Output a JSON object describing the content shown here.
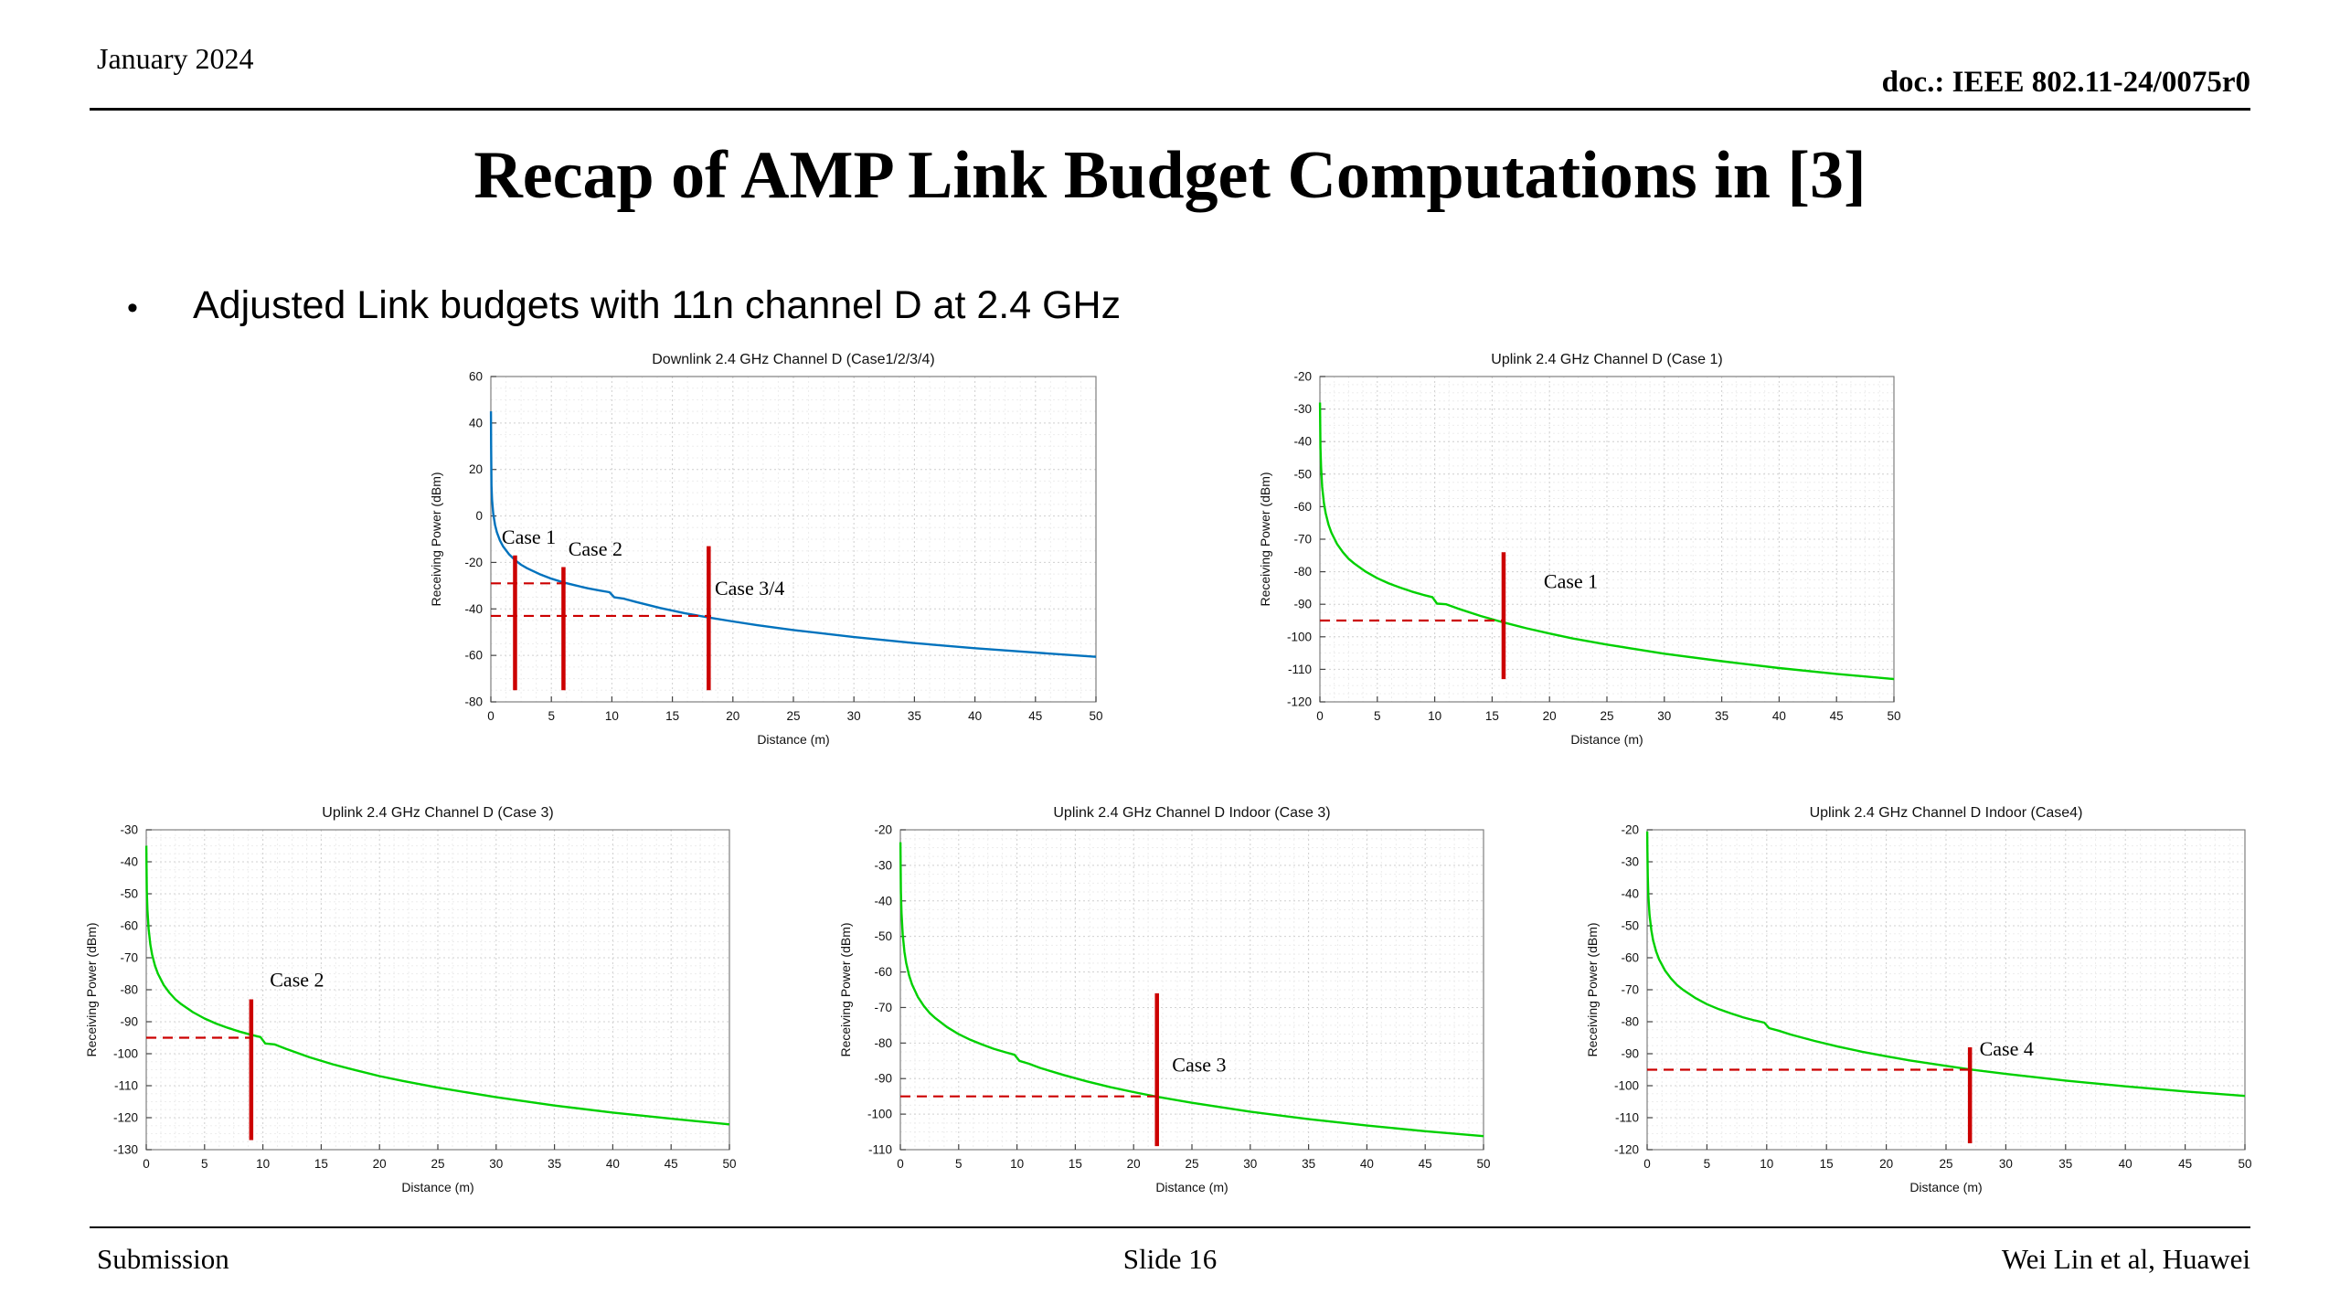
{
  "header": {
    "date": "January 2024",
    "doc_label": "doc.: IEEE 802.11-24/0075r0"
  },
  "slide": {
    "title": "Recap of AMP Link Budget Computations in [3]",
    "bullet_marker": "•",
    "bullet": "Adjusted Link budgets with 11n channel D at 2.4 GHz"
  },
  "footer": {
    "left": "Submission",
    "center": "Slide 16",
    "right": "Wei Lin et al, Huawei"
  },
  "colors": {
    "downlink_blue": "#0072bd",
    "uplink_green": "#00d000",
    "annotation_red": "#cc0000"
  },
  "chart_data": [
    {
      "id": "downlink",
      "type": "line",
      "title": "Downlink 2.4 GHz Channel D (Case1/2/3/4)",
      "xlabel": "Distance (m)",
      "ylabel": "Receiving Power (dBm)",
      "xlim": [
        0,
        50
      ],
      "ylim": [
        -80,
        60
      ],
      "xticks": [
        0,
        5,
        10,
        15,
        20,
        25,
        30,
        35,
        40,
        45,
        50
      ],
      "yticks": [
        -80,
        -60,
        -40,
        -20,
        0,
        20,
        40,
        60
      ],
      "grid": true,
      "legend": "none",
      "line_color": "#0072bd",
      "series": [
        {
          "name": "Downlink receiving power",
          "x": [
            0.01,
            0.02,
            0.05,
            0.1,
            0.2,
            0.35,
            0.5,
            0.75,
            1,
            1.5,
            2,
            2.5,
            3,
            4,
            5,
            6,
            7,
            8,
            9,
            9.8,
            10.2,
            11,
            12,
            14,
            16,
            18,
            20,
            22,
            25,
            30,
            35,
            40,
            45,
            50
          ],
          "y": [
            45,
            30,
            13,
            7,
            1,
            -3.9,
            -7,
            -10.5,
            -13,
            -16.5,
            -19,
            -21,
            -22.5,
            -25,
            -27,
            -28.6,
            -29.9,
            -31.1,
            -32.1,
            -32.8,
            -35,
            -35.6,
            -37,
            -39.6,
            -41.8,
            -43.7,
            -45.4,
            -47,
            -49.1,
            -52.1,
            -54.7,
            -56.9,
            -58.8,
            -60.6
          ]
        }
      ],
      "annotations": {
        "vlines": [
          {
            "x": 2,
            "y_from": -75,
            "y_to": -17,
            "label": "Case 1",
            "label_x": 0.9,
            "label_y": -12
          },
          {
            "x": 6,
            "y_from": -75,
            "y_to": -22,
            "label": "Case 2",
            "label_x": 6.4,
            "label_y": -17
          },
          {
            "x": 18,
            "y_from": -75,
            "y_to": -13,
            "label": "Case 3/4",
            "label_x": 18.5,
            "label_y": -34
          }
        ],
        "hlines": [
          {
            "y": -29,
            "x_from": 0,
            "x_to": 6.2
          },
          {
            "y": -43,
            "x_from": 0,
            "x_to": 18.2
          }
        ]
      }
    },
    {
      "id": "uplink-case1",
      "type": "line",
      "title": "Uplink 2.4 GHz Channel D (Case 1)",
      "xlabel": "Distance (m)",
      "ylabel": "Receiving Power (dBm)",
      "xlim": [
        0,
        50
      ],
      "ylim": [
        -120,
        -20
      ],
      "xticks": [
        0,
        5,
        10,
        15,
        20,
        25,
        30,
        35,
        40,
        45,
        50
      ],
      "yticks": [
        -120,
        -110,
        -100,
        -90,
        -80,
        -70,
        -60,
        -50,
        -40,
        -30,
        -20
      ],
      "grid": true,
      "legend": "none",
      "line_color": "#00d000",
      "series": [
        {
          "name": "Uplink receiving power",
          "x": [
            0.01,
            0.02,
            0.05,
            0.1,
            0.2,
            0.35,
            0.5,
            0.75,
            1,
            1.5,
            2,
            2.5,
            3,
            4,
            5,
            6,
            7,
            8,
            9,
            9.8,
            10.2,
            11,
            12,
            14,
            16,
            18,
            20,
            22,
            25,
            30,
            35,
            40,
            45,
            50
          ],
          "y": [
            -28,
            -34,
            -42,
            -48,
            -54,
            -58.9,
            -62,
            -65.5,
            -68,
            -71.5,
            -74,
            -76,
            -77.5,
            -80,
            -82,
            -83.6,
            -84.9,
            -86.1,
            -87.1,
            -87.8,
            -89.8,
            -90,
            -91.3,
            -93.6,
            -95.6,
            -97.4,
            -99,
            -100.5,
            -102.4,
            -105.2,
            -107.5,
            -109.6,
            -111.4,
            -113
          ]
        }
      ],
      "annotations": {
        "vlines": [
          {
            "x": 16,
            "y_from": -113,
            "y_to": -74,
            "label": "Case 1",
            "label_x": 19.5,
            "label_y": -85
          }
        ],
        "hlines": [
          {
            "y": -95,
            "x_from": 0,
            "x_to": 16
          }
        ]
      }
    },
    {
      "id": "uplink-case2",
      "type": "line",
      "title": "Uplink 2.4 GHz Channel D (Case 3)",
      "xlabel": "Distance (m)",
      "ylabel": "Receiving Power (dBm)",
      "xlim": [
        0,
        50
      ],
      "ylim": [
        -130,
        -30
      ],
      "xticks": [
        0,
        5,
        10,
        15,
        20,
        25,
        30,
        35,
        40,
        45,
        50
      ],
      "yticks": [
        -130,
        -120,
        -110,
        -100,
        -90,
        -80,
        -70,
        -60,
        -50,
        -40,
        -30
      ],
      "grid": true,
      "legend": "none",
      "line_color": "#00d000",
      "series": [
        {
          "name": "Uplink receiving power",
          "x": [
            0.01,
            0.02,
            0.05,
            0.1,
            0.2,
            0.35,
            0.5,
            0.75,
            1,
            1.5,
            2,
            2.5,
            3,
            4,
            5,
            6,
            7,
            8,
            9,
            9.8,
            10.2,
            11,
            12,
            14,
            16,
            18,
            20,
            22,
            25,
            30,
            35,
            40,
            45,
            50
          ],
          "y": [
            -35,
            -41,
            -49,
            -55,
            -61,
            -65.9,
            -69,
            -72.5,
            -75,
            -78.5,
            -81,
            -83,
            -84.5,
            -87,
            -89,
            -90.6,
            -91.9,
            -93.1,
            -94.1,
            -94.8,
            -96.8,
            -97.1,
            -98.5,
            -101.1,
            -103.3,
            -105.2,
            -107,
            -108.5,
            -110.6,
            -113.6,
            -116.2,
            -118.4,
            -120.3,
            -122.1
          ]
        }
      ],
      "annotations": {
        "vlines": [
          {
            "x": 9,
            "y_from": -127,
            "y_to": -83,
            "label": "Case 2",
            "label_x": 10.6,
            "label_y": -79
          }
        ],
        "hlines": [
          {
            "y": -95,
            "x_from": 0,
            "x_to": 9
          }
        ]
      }
    },
    {
      "id": "uplink-indoor-case3",
      "type": "line",
      "title": "Uplink 2.4 GHz Channel D Indoor (Case 3)",
      "xlabel": "Distance (m)",
      "ylabel": "Receiving Power (dBm)",
      "xlim": [
        0,
        50
      ],
      "ylim": [
        -110,
        -20
      ],
      "xticks": [
        0,
        5,
        10,
        15,
        20,
        25,
        30,
        35,
        40,
        45,
        50
      ],
      "yticks": [
        -110,
        -100,
        -90,
        -80,
        -70,
        -60,
        -50,
        -40,
        -30,
        -20
      ],
      "grid": true,
      "legend": "none",
      "line_color": "#00d000",
      "series": [
        {
          "name": "Uplink receiving power (indoor)",
          "x": [
            0.01,
            0.02,
            0.05,
            0.1,
            0.2,
            0.35,
            0.5,
            0.75,
            1,
            1.5,
            2,
            2.5,
            3,
            4,
            5,
            6,
            7,
            8,
            9,
            9.8,
            10.2,
            11,
            12,
            14,
            16,
            18,
            20,
            22,
            25,
            30,
            35,
            40,
            45,
            50
          ],
          "y": [
            -23.5,
            -29.5,
            -37.5,
            -43.5,
            -49.5,
            -54.4,
            -57.5,
            -61,
            -63.5,
            -67,
            -69.5,
            -71.5,
            -73,
            -75.5,
            -77.5,
            -79.1,
            -80.4,
            -81.6,
            -82.6,
            -83.3,
            -85,
            -85.8,
            -87,
            -89,
            -90.8,
            -92.4,
            -93.8,
            -95.1,
            -96.8,
            -99.3,
            -101.4,
            -103.2,
            -104.8,
            -106.2
          ]
        }
      ],
      "annotations": {
        "vlines": [
          {
            "x": 22,
            "y_from": -109,
            "y_to": -66,
            "label": "Case 3",
            "label_x": 23.3,
            "label_y": -88
          }
        ],
        "hlines": [
          {
            "y": -95,
            "x_from": 0,
            "x_to": 22
          }
        ]
      }
    },
    {
      "id": "uplink-indoor-case4",
      "type": "line",
      "title": "Uplink 2.4 GHz Channel D Indoor (Case4)",
      "xlabel": "Distance (m)",
      "ylabel": "Receiving Power (dBm)",
      "xlim": [
        0,
        50
      ],
      "ylim": [
        -120,
        -20
      ],
      "xticks": [
        0,
        5,
        10,
        15,
        20,
        25,
        30,
        35,
        40,
        45,
        50
      ],
      "yticks": [
        -120,
        -110,
        -100,
        -90,
        -80,
        -70,
        -60,
        -50,
        -40,
        -30,
        -20
      ],
      "grid": true,
      "legend": "none",
      "line_color": "#00d000",
      "series": [
        {
          "name": "Uplink receiving power (indoor)",
          "x": [
            0.01,
            0.02,
            0.05,
            0.1,
            0.2,
            0.35,
            0.5,
            0.75,
            1,
            1.5,
            2,
            2.5,
            3,
            4,
            5,
            6,
            7,
            8,
            9,
            9.8,
            10.2,
            11,
            12,
            14,
            16,
            18,
            20,
            22,
            25,
            27,
            30,
            35,
            40,
            45,
            50
          ],
          "y": [
            -20.5,
            -26.5,
            -34.5,
            -40.5,
            -46.5,
            -51.4,
            -54.5,
            -58,
            -60.5,
            -64,
            -66.5,
            -68.5,
            -70,
            -72.5,
            -74.5,
            -76.1,
            -77.4,
            -78.6,
            -79.6,
            -80.3,
            -82,
            -82.8,
            -84,
            -86,
            -87.8,
            -89.4,
            -90.8,
            -92.1,
            -93.8,
            -94.9,
            -96.3,
            -98.4,
            -100.2,
            -101.8,
            -103.2
          ]
        }
      ],
      "annotations": {
        "vlines": [
          {
            "x": 27,
            "y_from": -118,
            "y_to": -88,
            "label": "Case 4",
            "label_x": 27.8,
            "label_y": -90.5
          }
        ],
        "hlines": [
          {
            "y": -95,
            "x_from": 0,
            "x_to": 27
          }
        ]
      }
    }
  ]
}
